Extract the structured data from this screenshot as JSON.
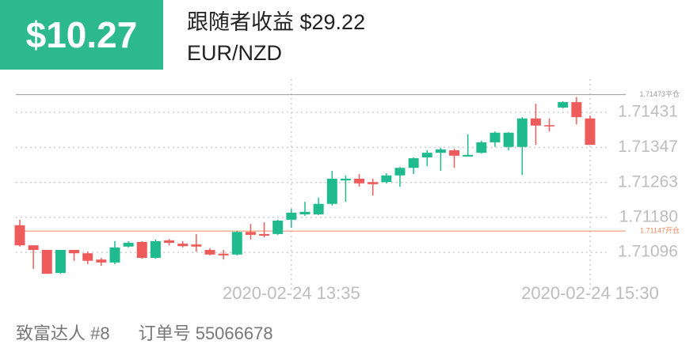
{
  "header": {
    "profit": "$10.27",
    "follower_profit": "跟随者收益 $29.22",
    "symbol": "EUR/NZD"
  },
  "footer": {
    "trader": "致富达人 #8",
    "order": "订单号 55066678"
  },
  "chart_data": {
    "type": "candlestick",
    "categories": [
      null,
      null,
      null,
      null,
      null,
      null,
      null,
      null,
      null,
      null,
      null,
      null,
      null,
      null,
      null,
      null,
      null,
      null,
      null,
      null,
      "2020-02-24 13:35",
      null,
      null,
      null,
      null,
      null,
      null,
      null,
      null,
      null,
      null,
      null,
      null,
      null,
      null,
      null,
      null,
      null,
      null,
      null,
      null,
      null,
      "2020-02-24 15:30"
    ],
    "open": [
      1.71161,
      1.71113,
      1.71102,
      1.71047,
      1.71102,
      1.71094,
      1.71079,
      1.71072,
      1.7111,
      1.71121,
      1.71083,
      1.71125,
      1.71117,
      1.71115,
      1.71102,
      1.71093,
      1.71091,
      1.71145,
      1.7114,
      1.7114,
      1.71174,
      1.71187,
      1.71187,
      1.71212,
      1.71268,
      1.71272,
      1.71264,
      1.71264,
      1.7128,
      1.71298,
      1.71323,
      1.71334,
      1.7134,
      1.71325,
      1.71334,
      1.71359,
      1.71348,
      1.71348,
      1.71416,
      1.714,
      1.71442,
      1.71455,
      1.71416
    ],
    "high": [
      1.71174,
      1.71113,
      1.71102,
      1.71102,
      1.71102,
      1.71098,
      1.71083,
      1.71123,
      1.71123,
      1.71123,
      1.71127,
      1.71128,
      1.71123,
      1.7114,
      1.71106,
      1.71102,
      1.71147,
      1.71164,
      1.71168,
      1.71174,
      1.712,
      1.71217,
      1.71227,
      1.71291,
      1.7128,
      1.71283,
      1.71272,
      1.71285,
      1.713,
      1.71323,
      1.7134,
      1.71346,
      1.71344,
      1.71378,
      1.71363,
      1.71385,
      1.71383,
      1.71419,
      1.71451,
      1.71416,
      1.71457,
      1.71467,
      1.71423
    ],
    "low": [
      1.7111,
      1.71057,
      1.71045,
      1.71045,
      1.71076,
      1.71068,
      1.71064,
      1.71068,
      1.71108,
      1.71081,
      1.71081,
      1.71113,
      1.71108,
      1.71098,
      1.71089,
      1.71079,
      1.71089,
      1.71127,
      1.71132,
      1.71138,
      1.71155,
      1.71183,
      1.71185,
      1.71208,
      1.71217,
      1.71253,
      1.71232,
      1.71261,
      1.71253,
      1.71283,
      1.71302,
      1.71291,
      1.71298,
      1.71325,
      1.71332,
      1.71348,
      1.7134,
      1.71281,
      1.71353,
      1.71385,
      1.7144,
      1.71402,
      1.71353
    ],
    "close": [
      1.71113,
      1.71102,
      1.71045,
      1.71102,
      1.71094,
      1.71076,
      1.71072,
      1.71108,
      1.71119,
      1.71083,
      1.71123,
      1.71119,
      1.71111,
      1.7111,
      1.71091,
      1.71089,
      1.71145,
      1.71138,
      1.71136,
      1.71172,
      1.71191,
      1.71193,
      1.71212,
      1.71272,
      1.71272,
      1.71261,
      1.71259,
      1.7128,
      1.71298,
      1.71321,
      1.71334,
      1.71342,
      1.71327,
      1.71329,
      1.71359,
      1.71382,
      1.71382,
      1.71416,
      1.71399,
      1.71397,
      1.71455,
      1.71419,
      1.71353
    ],
    "up_color": "#1fbb8f",
    "down_color": "#ee5b5b",
    "ylim": [
      1.71,
      1.7151
    ],
    "yticks": [
      1.71431,
      1.71347,
      1.71263,
      {
        "value": 1.7118,
        "label": "1.71180"
      },
      1.71096
    ],
    "reference_lines": [
      {
        "value": 1.71473,
        "label": "1.71473平仓",
        "color": "#9a9a9a"
      },
      {
        "value": 1.71147,
        "label": "1.71147开仓",
        "color": "#f08a5d"
      }
    ],
    "grid": true
  }
}
